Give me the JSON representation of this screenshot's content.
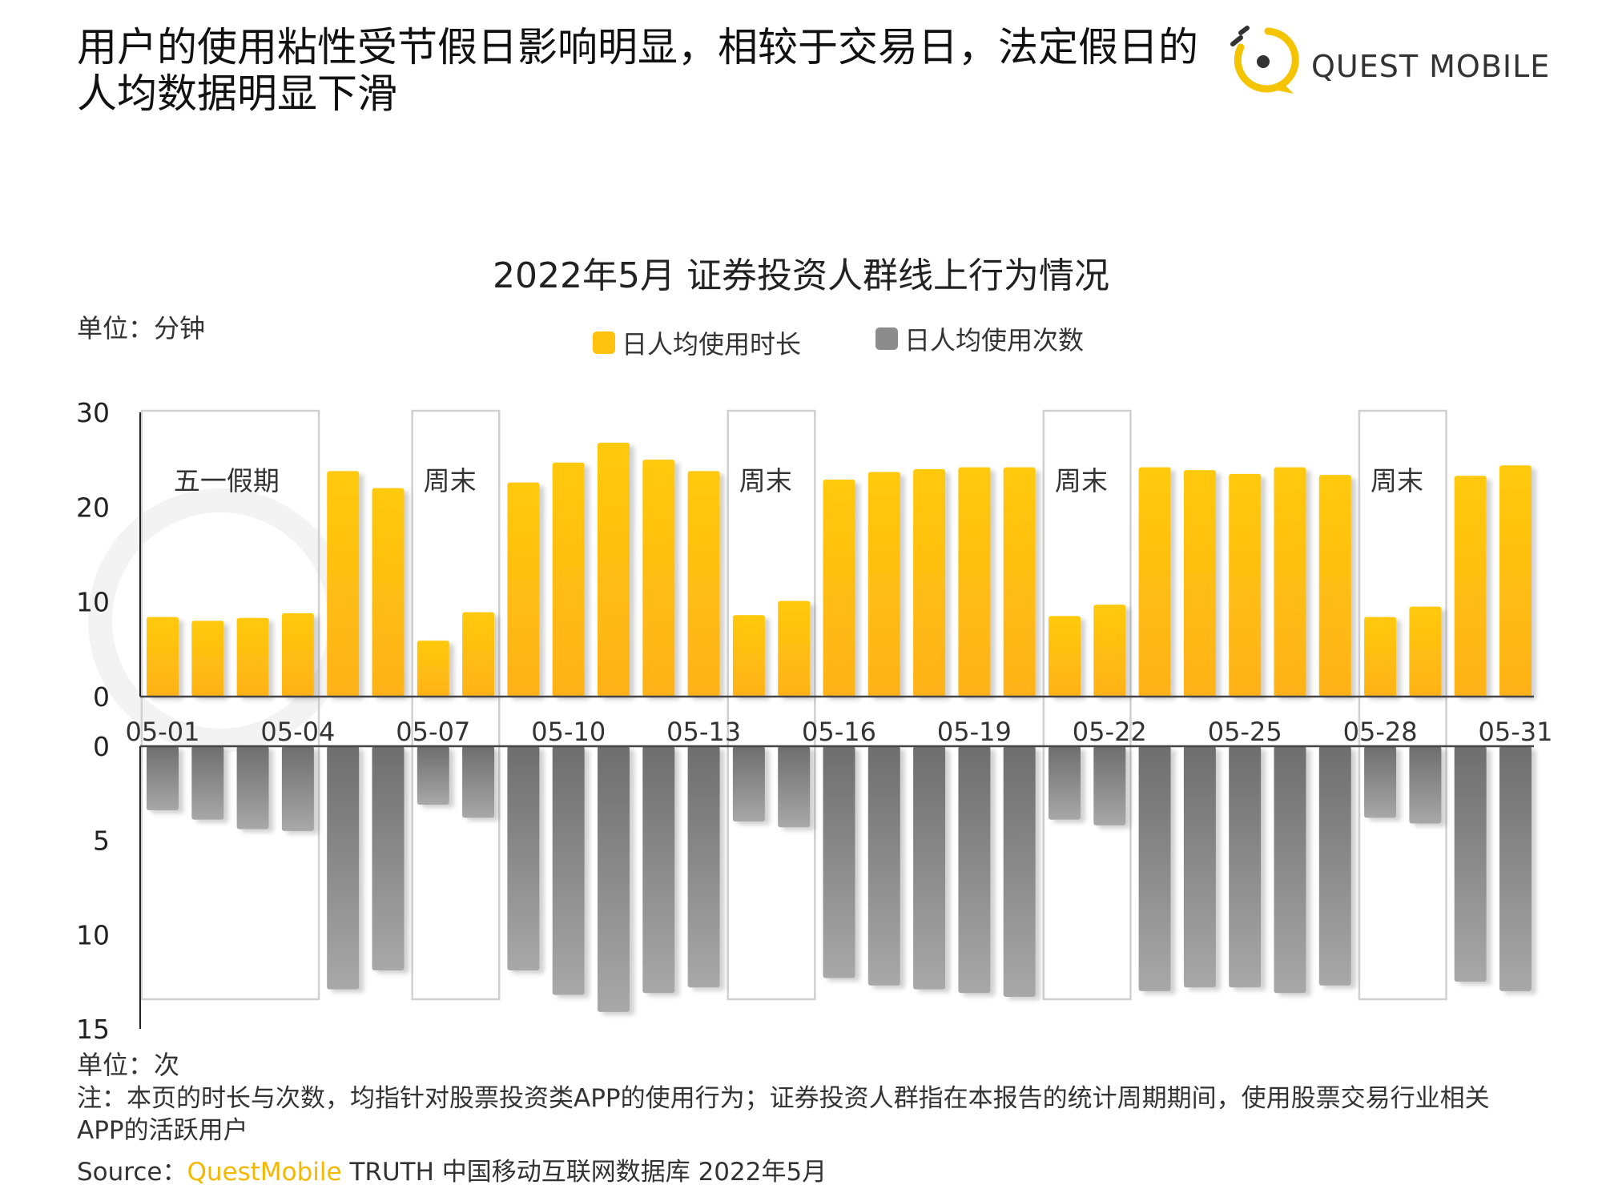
{
  "headline": "用户的使用粘性受节假日影响明显，相较于交易日，法定假日的人均数据明显下滑",
  "logo": {
    "text": "QUEST MOBILE",
    "color": "#f5c400"
  },
  "units": {
    "top": "单位：分钟",
    "bottom": "单位：次"
  },
  "note": "注：本页的时长与次数，均指针对股票投资类APP的使用行为；证券投资人群指在本报告的统计周期期间，使用股票交易行业相关APP的活跃用户",
  "source": {
    "label": "Source：",
    "brand": "QuestMobile",
    "rest": " TRUTH 中国移动互联网数据库 2022年5月"
  },
  "chart_data": {
    "type": "bar",
    "title": "2022年5月 证券投资人群线上行为情况",
    "categories": [
      "05-01",
      "05-02",
      "05-03",
      "05-04",
      "05-05",
      "05-06",
      "05-07",
      "05-08",
      "05-09",
      "05-10",
      "05-11",
      "05-12",
      "05-13",
      "05-14",
      "05-15",
      "05-16",
      "05-17",
      "05-18",
      "05-19",
      "05-20",
      "05-21",
      "05-22",
      "05-23",
      "05-24",
      "05-25",
      "05-26",
      "05-27",
      "05-28",
      "05-29",
      "05-30",
      "05-31"
    ],
    "tick_labels": [
      "05-01",
      "05-04",
      "05-07",
      "05-10",
      "05-13",
      "05-16",
      "05-19",
      "05-22",
      "05-25",
      "05-28",
      "05-31"
    ],
    "series": [
      {
        "name": "日人均使用时长",
        "color": "#ffc20e",
        "values": [
          8.4,
          8.0,
          8.3,
          8.8,
          23.8,
          22.0,
          5.9,
          8.9,
          22.6,
          24.7,
          26.8,
          25.0,
          23.8,
          8.6,
          10.1,
          22.9,
          23.7,
          24.0,
          24.2,
          24.2,
          8.5,
          9.7,
          24.2,
          23.9,
          23.5,
          24.2,
          23.4,
          8.4,
          9.5,
          23.3,
          24.4
        ]
      },
      {
        "name": "日人均使用次数",
        "color": "#8c8c8c",
        "values": [
          3.4,
          3.9,
          4.4,
          4.5,
          12.9,
          11.9,
          3.1,
          3.8,
          11.9,
          13.2,
          14.1,
          13.1,
          12.8,
          4.0,
          4.3,
          12.3,
          12.7,
          12.9,
          13.1,
          13.3,
          3.9,
          4.2,
          13.0,
          12.8,
          12.8,
          13.1,
          12.7,
          3.8,
          4.1,
          12.5,
          13.0
        ]
      }
    ],
    "top_axis": {
      "ylim": [
        0,
        30
      ],
      "ticks": [
        0,
        10,
        20,
        30
      ]
    },
    "bottom_axis": {
      "ylim": [
        0,
        15
      ],
      "ticks": [
        0,
        5,
        10,
        15
      ],
      "inverted": true
    },
    "annotations": [
      {
        "label": "五一假期",
        "start": "05-01",
        "end": "05-04"
      },
      {
        "label": "周末",
        "start": "05-07",
        "end": "05-08"
      },
      {
        "label": "周末",
        "start": "05-14",
        "end": "05-15"
      },
      {
        "label": "周末",
        "start": "05-21",
        "end": "05-22"
      },
      {
        "label": "周末",
        "start": "05-28",
        "end": "05-29"
      }
    ]
  }
}
